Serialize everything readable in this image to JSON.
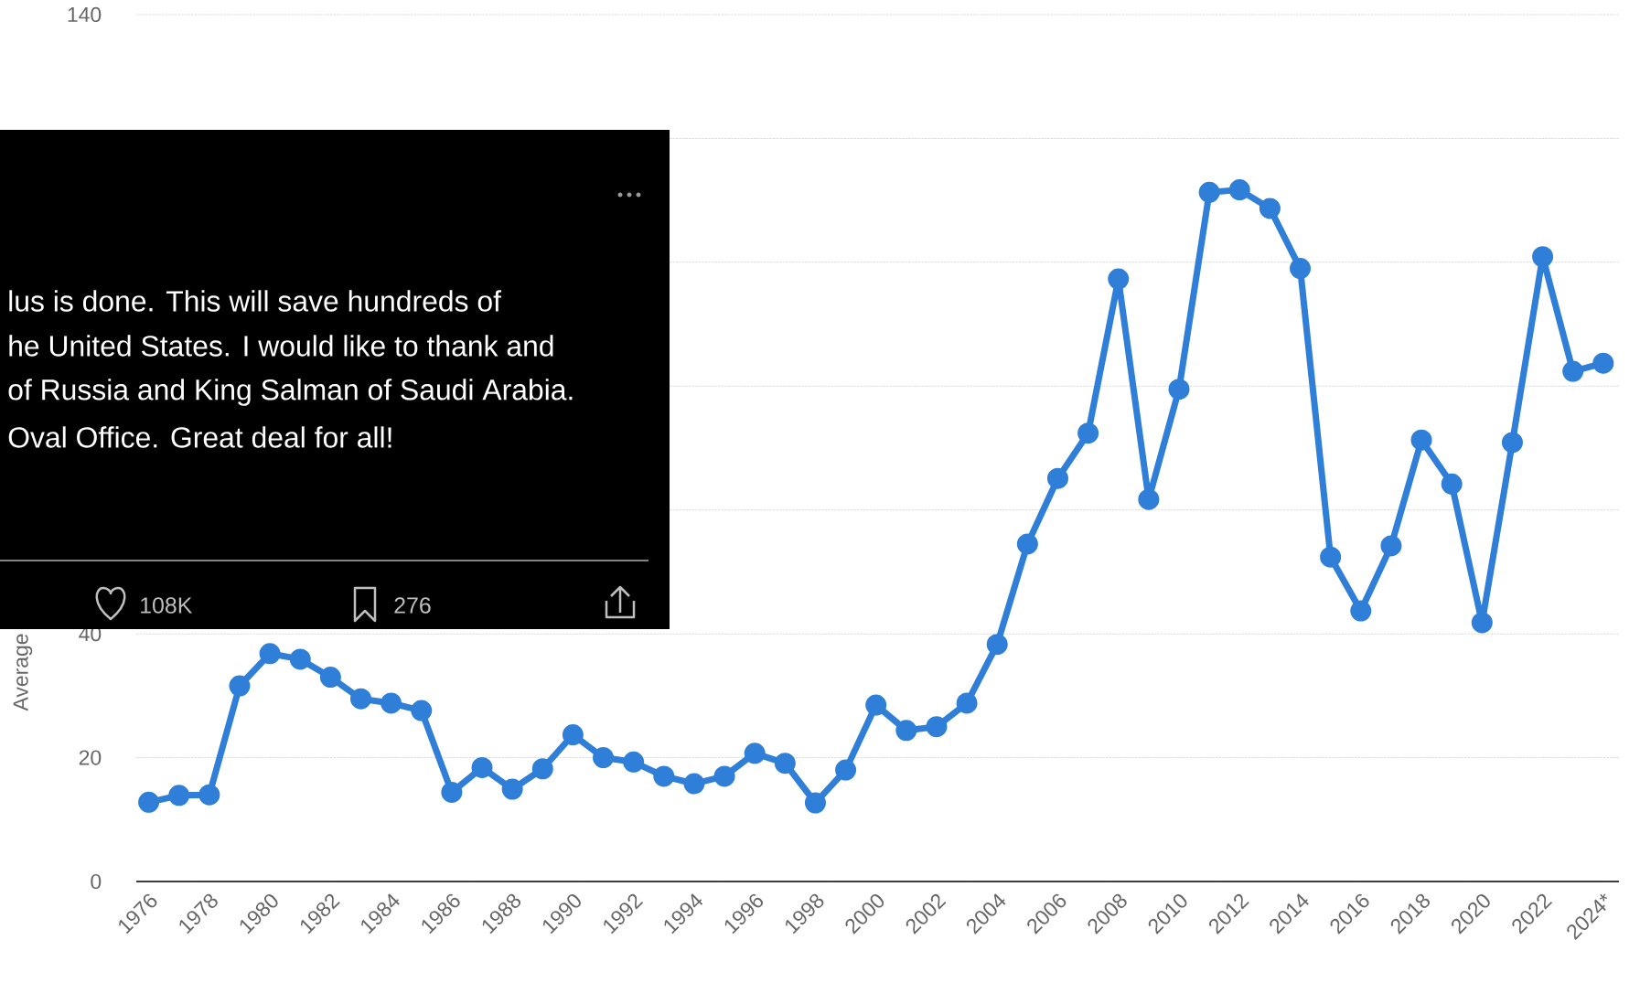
{
  "chart_data": {
    "type": "line",
    "ylabel": "Average",
    "categories": [
      "1976",
      null,
      "1978",
      null,
      "1980",
      null,
      "1982",
      null,
      "1984",
      null,
      "1986",
      null,
      "1988",
      null,
      "1990",
      null,
      "1992",
      null,
      "1994",
      null,
      "1996",
      null,
      "1998",
      null,
      "2000",
      null,
      "2002",
      null,
      "2004",
      null,
      "2006",
      null,
      "2008",
      null,
      "2010",
      null,
      "2012",
      null,
      "2014",
      null,
      "2016",
      null,
      "2018",
      null,
      "2020",
      null,
      "2022",
      null,
      "2024*"
    ],
    "values": [
      12.8,
      13.9,
      14.0,
      31.6,
      36.8,
      35.9,
      33.0,
      29.5,
      28.8,
      27.6,
      14.4,
      18.4,
      14.9,
      18.2,
      23.7,
      20.0,
      19.3,
      17.0,
      15.8,
      17.0,
      20.7,
      19.1,
      12.7,
      18.0,
      28.5,
      24.4,
      25.0,
      28.8,
      38.3,
      54.5,
      65.1,
      72.4,
      97.3,
      61.7,
      79.5,
      111.3,
      111.7,
      108.7,
      99.0,
      52.4,
      43.7,
      54.2,
      71.3,
      64.2,
      41.8,
      70.9,
      100.9,
      82.4,
      83.7
    ],
    "color": "#2f7ed8",
    "marker": "circle",
    "grid": "y",
    "ylim": [
      0,
      140
    ],
    "yticks": [
      0,
      20,
      40,
      {
        "value": 60,
        "label": null
      },
      {
        "value": 80,
        "label": null
      },
      {
        "value": 100,
        "label": null
      },
      {
        "value": 120,
        "label": null
      },
      140
    ],
    "annotations": [
      "lus is done. This will save hundreds of",
      "he United States. I would like to thank and",
      "of Russia and King Salman of Saudi Arabia.",
      "Oval Office. Great deal for all!",
      "108K",
      "276"
    ]
  }
}
